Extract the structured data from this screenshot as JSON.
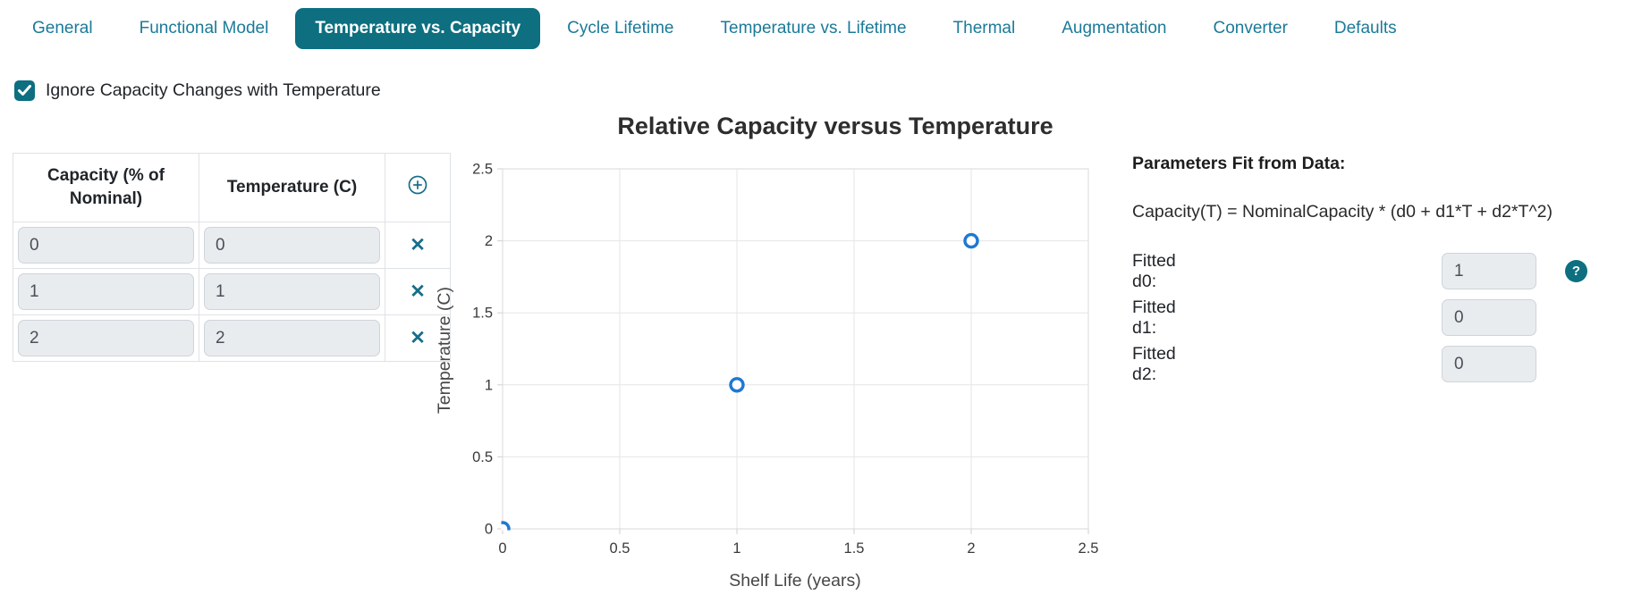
{
  "tabs": {
    "items": [
      "General",
      "Functional Model",
      "Temperature vs. Capacity",
      "Cycle Lifetime",
      "Temperature vs. Lifetime",
      "Thermal",
      "Augmentation",
      "Converter",
      "Defaults"
    ],
    "active_index": 2
  },
  "checkbox": {
    "label": "Ignore Capacity Changes with Temperature",
    "checked": true
  },
  "data_table": {
    "columns": [
      "Capacity (% of Nominal)",
      "Temperature (C)"
    ],
    "add_row_icon": "circled-plus",
    "remove_row_icon": "✕",
    "rows": [
      {
        "capacity": "0",
        "temperature": "0"
      },
      {
        "capacity": "1",
        "temperature": "1"
      },
      {
        "capacity": "2",
        "temperature": "2"
      }
    ]
  },
  "chart_data": {
    "type": "scatter",
    "title": "Relative Capacity versus Temperature",
    "xlabel": "Shelf Life (years)",
    "ylabel": "Temperature (C)",
    "xlim": [
      0,
      2.5
    ],
    "ylim": [
      0,
      2.5
    ],
    "xticks": [
      0,
      0.5,
      1,
      1.5,
      2,
      2.5
    ],
    "yticks": [
      0,
      0.5,
      1,
      1.5,
      2,
      2.5
    ],
    "grid": true,
    "legend": "none",
    "points": [
      [
        0,
        0
      ],
      [
        1,
        1
      ],
      [
        2,
        2
      ]
    ],
    "point_color": "#1e78d2"
  },
  "parameters": {
    "heading": "Parameters Fit from Data:",
    "formula": "Capacity(T) = NominalCapacity * (d0 + d1*T + d2*T^2)",
    "fields": [
      {
        "label": "Fitted d0:",
        "value": "1"
      },
      {
        "label": "Fitted d1:",
        "value": "0"
      },
      {
        "label": "Fitted d2:",
        "value": "0"
      }
    ],
    "help_icon": "?"
  },
  "colors": {
    "teal_fill": "#0d6f80",
    "teal_text": "#1b7a99",
    "icon_teal": "#166f8a",
    "point_blue": "#1e78d2",
    "input_bg": "#e9ecef",
    "input_border": "#ced4da",
    "table_border": "#dee2e6"
  }
}
